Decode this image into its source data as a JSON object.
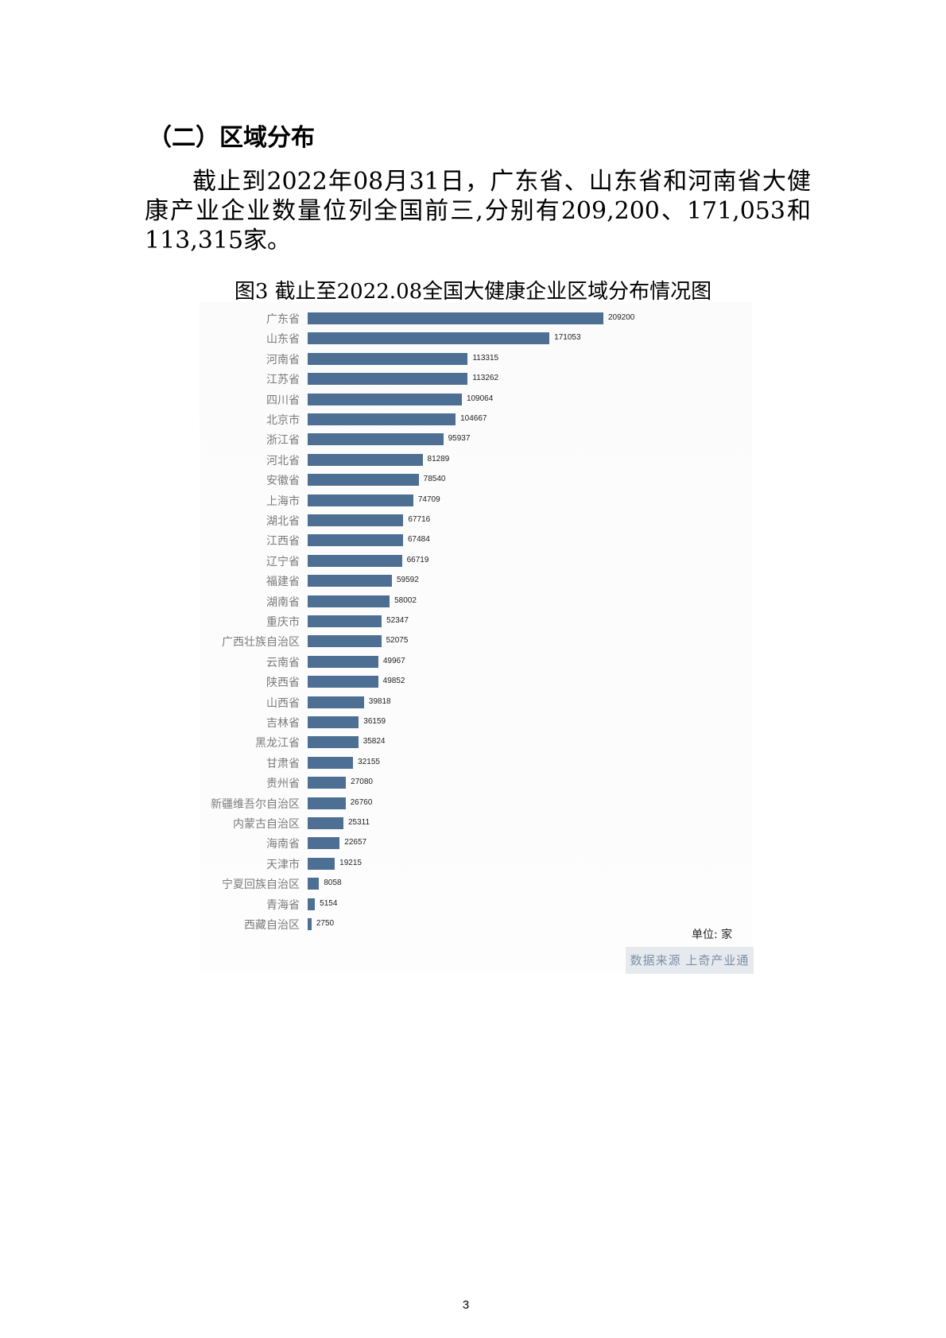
{
  "heading": "（二）区域分布",
  "paragraph": "截止到2022年08月31日，广东省、山东省和河南省大健康产业企业数量位列全国前三,分别有209,200、171,053和113,315家。",
  "chart_data": {
    "type": "bar",
    "orientation": "horizontal",
    "title": "图3 截止至2022.08全国大健康企业区域分布情况图",
    "categories": [
      "广东省",
      "山东省",
      "河南省",
      "江苏省",
      "四川省",
      "北京市",
      "浙江省",
      "河北省",
      "安徽省",
      "上海市",
      "湖北省",
      "江西省",
      "辽宁省",
      "福建省",
      "湖南省",
      "重庆市",
      "广西壮族自治区",
      "云南省",
      "陕西省",
      "山西省",
      "吉林省",
      "黑龙江省",
      "甘肃省",
      "贵州省",
      "新疆维吾尔自治区",
      "内蒙古自治区",
      "海南省",
      "天津市",
      "宁夏回族自治区",
      "青海省",
      "西藏自治区"
    ],
    "values": [
      209200,
      171053,
      113315,
      113262,
      109064,
      104667,
      95937,
      81289,
      78540,
      74709,
      67716,
      67484,
      66719,
      59592,
      58002,
      52347,
      52075,
      49967,
      49852,
      39818,
      36159,
      35824,
      32155,
      27080,
      26760,
      25311,
      22657,
      19215,
      8058,
      5154,
      2750
    ],
    "unit_label": "单位: 家",
    "source_label": "数据来源 上奇产业通",
    "bar_color": "#4d6f93",
    "grid": false,
    "data_labels": true
  },
  "page_number": "3"
}
